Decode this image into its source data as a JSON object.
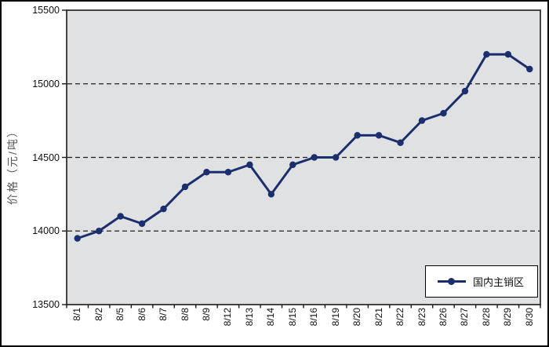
{
  "chart_data": {
    "type": "line",
    "title": "",
    "xlabel": "",
    "ylabel": "价格（元/吨）",
    "categories": [
      "8/1",
      "8/2",
      "8/5",
      "8/6",
      "8/7",
      "8/8",
      "8/9",
      "8/12",
      "8/13",
      "8/14",
      "8/15",
      "8/16",
      "8/19",
      "8/20",
      "8/21",
      "8/22",
      "8/23",
      "8/26",
      "8/27",
      "8/28",
      "8/29",
      "8/30"
    ],
    "series": [
      {
        "name": "国内主销区",
        "color": "#1b2e6d",
        "marker": "circle",
        "values": [
          13950,
          14000,
          14100,
          14050,
          14150,
          14300,
          14400,
          14400,
          14450,
          14250,
          14450,
          14500,
          14500,
          14650,
          14650,
          14600,
          14750,
          14800,
          14950,
          15200,
          15200,
          15100
        ]
      }
    ],
    "ylim": [
      13500,
      15500
    ],
    "yticks": [
      13500,
      14000,
      14500,
      15000,
      15500
    ],
    "gridline_values": [
      14000,
      14500,
      15000
    ],
    "grid_style": "dashed-horizontal",
    "legend_position": "inside-bottom-right",
    "colors": {
      "plot_background": "#e0e1e3",
      "gridline": "#1f1f1f",
      "axis": "#1a1a1a",
      "tick_label": "#111111",
      "axis_title": "#5a5a5a"
    }
  }
}
